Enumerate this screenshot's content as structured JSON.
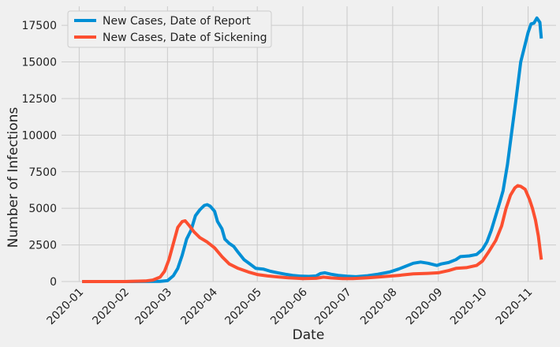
{
  "chart_data": {
    "type": "line",
    "title": "",
    "xlabel": "Date",
    "ylabel": "Number of Infections",
    "x_ticks": [
      "2020-01",
      "2020-02",
      "2020-03",
      "2020-04",
      "2020-05",
      "2020-06",
      "2020-07",
      "2020-08",
      "2020-09",
      "2020-10",
      "2020-11"
    ],
    "y_ticks": [
      0,
      2500,
      5000,
      7500,
      10000,
      12500,
      15000,
      17500
    ],
    "y_tick_labels": [
      "0",
      "2500",
      "5000",
      "7500",
      "10000",
      "12500",
      "15000",
      "17500"
    ],
    "xlim": [
      "2019-12-20",
      "2020-11-20"
    ],
    "ylim": [
      0,
      18800
    ],
    "grid": true,
    "legend_position": "top-left",
    "series": [
      {
        "name": "New Cases, Date of Report",
        "color": "#008fd5",
        "points": [
          [
            "2020-01-03",
            0
          ],
          [
            "2020-02-01",
            0
          ],
          [
            "2020-02-25",
            10
          ],
          [
            "2020-03-01",
            60
          ],
          [
            "2020-03-05",
            400
          ],
          [
            "2020-03-08",
            900
          ],
          [
            "2020-03-11",
            1800
          ],
          [
            "2020-03-14",
            2900
          ],
          [
            "2020-03-17",
            3500
          ],
          [
            "2020-03-20",
            4500
          ],
          [
            "2020-03-23",
            4900
          ],
          [
            "2020-03-26",
            5200
          ],
          [
            "2020-03-28",
            5250
          ],
          [
            "2020-03-30",
            5150
          ],
          [
            "2020-04-02",
            4800
          ],
          [
            "2020-04-04",
            4100
          ],
          [
            "2020-04-07",
            3600
          ],
          [
            "2020-04-09",
            2900
          ],
          [
            "2020-04-12",
            2600
          ],
          [
            "2020-04-15",
            2400
          ],
          [
            "2020-04-18",
            2000
          ],
          [
            "2020-04-22",
            1500
          ],
          [
            "2020-04-26",
            1200
          ],
          [
            "2020-04-30",
            900
          ],
          [
            "2020-05-05",
            850
          ],
          [
            "2020-05-10",
            700
          ],
          [
            "2020-05-15",
            600
          ],
          [
            "2020-05-20",
            500
          ],
          [
            "2020-05-25",
            420
          ],
          [
            "2020-05-30",
            370
          ],
          [
            "2020-06-05",
            350
          ],
          [
            "2020-06-10",
            380
          ],
          [
            "2020-06-13",
            550
          ],
          [
            "2020-06-16",
            600
          ],
          [
            "2020-06-20",
            500
          ],
          [
            "2020-06-25",
            420
          ],
          [
            "2020-07-01",
            360
          ],
          [
            "2020-07-07",
            330
          ],
          [
            "2020-07-15",
            400
          ],
          [
            "2020-07-22",
            500
          ],
          [
            "2020-07-30",
            650
          ],
          [
            "2020-08-05",
            850
          ],
          [
            "2020-08-10",
            1050
          ],
          [
            "2020-08-15",
            1250
          ],
          [
            "2020-08-20",
            1330
          ],
          [
            "2020-08-25",
            1250
          ],
          [
            "2020-08-31",
            1100
          ],
          [
            "2020-09-03",
            1200
          ],
          [
            "2020-09-08",
            1300
          ],
          [
            "2020-09-13",
            1500
          ],
          [
            "2020-09-16",
            1700
          ],
          [
            "2020-09-22",
            1750
          ],
          [
            "2020-09-27",
            1850
          ],
          [
            "2020-10-01",
            2200
          ],
          [
            "2020-10-04",
            2700
          ],
          [
            "2020-10-07",
            3500
          ],
          [
            "2020-10-10",
            4500
          ],
          [
            "2020-10-13",
            5500
          ],
          [
            "2020-10-15",
            6200
          ],
          [
            "2020-10-18",
            8000
          ],
          [
            "2020-10-21",
            10300
          ],
          [
            "2020-10-24",
            12600
          ],
          [
            "2020-10-27",
            15000
          ],
          [
            "2020-10-30",
            16200
          ],
          [
            "2020-11-01",
            17000
          ],
          [
            "2020-11-03",
            17600
          ],
          [
            "2020-11-05",
            17650
          ],
          [
            "2020-11-07",
            18000
          ],
          [
            "2020-11-09",
            17700
          ],
          [
            "2020-11-10",
            16600
          ]
        ]
      },
      {
        "name": "New Cases, Date of Sickening",
        "color": "#fc4f30",
        "points": [
          [
            "2020-01-03",
            0
          ],
          [
            "2020-02-01",
            0
          ],
          [
            "2020-02-15",
            40
          ],
          [
            "2020-02-20",
            100
          ],
          [
            "2020-02-25",
            300
          ],
          [
            "2020-02-28",
            700
          ],
          [
            "2020-03-02",
            1500
          ],
          [
            "2020-03-05",
            2600
          ],
          [
            "2020-03-08",
            3700
          ],
          [
            "2020-03-11",
            4100
          ],
          [
            "2020-03-13",
            4150
          ],
          [
            "2020-03-16",
            3800
          ],
          [
            "2020-03-19",
            3400
          ],
          [
            "2020-03-23",
            3000
          ],
          [
            "2020-03-28",
            2700
          ],
          [
            "2020-04-02",
            2300
          ],
          [
            "2020-04-07",
            1700
          ],
          [
            "2020-04-12",
            1200
          ],
          [
            "2020-04-18",
            900
          ],
          [
            "2020-04-25",
            650
          ],
          [
            "2020-05-01",
            480
          ],
          [
            "2020-05-08",
            380
          ],
          [
            "2020-05-15",
            320
          ],
          [
            "2020-05-22",
            260
          ],
          [
            "2020-06-01",
            200
          ],
          [
            "2020-06-10",
            220
          ],
          [
            "2020-06-15",
            300
          ],
          [
            "2020-06-20",
            250
          ],
          [
            "2020-06-28",
            200
          ],
          [
            "2020-07-05",
            200
          ],
          [
            "2020-07-15",
            260
          ],
          [
            "2020-07-25",
            330
          ],
          [
            "2020-08-05",
            420
          ],
          [
            "2020-08-15",
            520
          ],
          [
            "2020-08-25",
            560
          ],
          [
            "2020-09-01",
            600
          ],
          [
            "2020-09-08",
            750
          ],
          [
            "2020-09-13",
            900
          ],
          [
            "2020-09-20",
            950
          ],
          [
            "2020-09-27",
            1100
          ],
          [
            "2020-10-01",
            1400
          ],
          [
            "2020-10-05",
            2000
          ],
          [
            "2020-10-10",
            2800
          ],
          [
            "2020-10-14",
            3800
          ],
          [
            "2020-10-17",
            5000
          ],
          [
            "2020-10-20",
            5900
          ],
          [
            "2020-10-23",
            6400
          ],
          [
            "2020-10-25",
            6550
          ],
          [
            "2020-10-27",
            6500
          ],
          [
            "2020-10-30",
            6300
          ],
          [
            "2020-11-02",
            5600
          ],
          [
            "2020-11-04",
            5000
          ],
          [
            "2020-11-06",
            4200
          ],
          [
            "2020-11-08",
            3100
          ],
          [
            "2020-11-10",
            1500
          ]
        ]
      }
    ]
  }
}
